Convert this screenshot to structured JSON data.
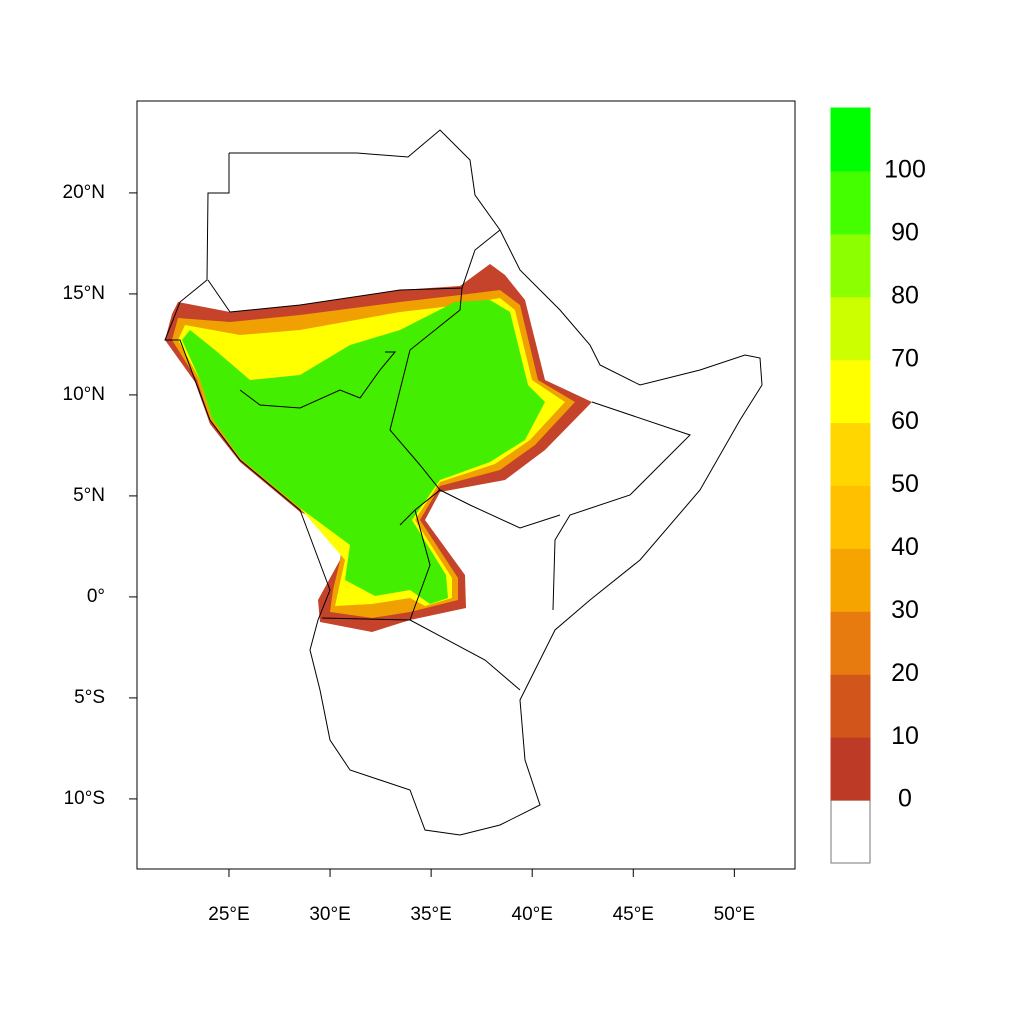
{
  "map": {
    "xlim": [
      20.45,
      53.0
    ],
    "ylim": [
      -13.47,
      24.55
    ],
    "xticks": [
      {
        "value": 25,
        "label": "25°E"
      },
      {
        "value": 30,
        "label": "30°E"
      },
      {
        "value": 35,
        "label": "35°E"
      },
      {
        "value": 40,
        "label": "40°E"
      },
      {
        "value": 45,
        "label": "45°E"
      },
      {
        "value": 50,
        "label": "50°E"
      }
    ],
    "yticks": [
      {
        "value": 20,
        "label": "20°N"
      },
      {
        "value": 15,
        "label": "15°N"
      },
      {
        "value": 10,
        "label": "10°N"
      },
      {
        "value": 5,
        "label": "5°N"
      },
      {
        "value": 0,
        "label": "0°"
      },
      {
        "value": -5,
        "label": "5°S"
      },
      {
        "value": -10,
        "label": "10°S"
      }
    ],
    "colorbar": {
      "levels": [
        0,
        10,
        20,
        30,
        40,
        50,
        60,
        70,
        80,
        90,
        100
      ],
      "colors": [
        "#ffffff",
        "#bc3a26",
        "#d2561c",
        "#e87b10",
        "#f6a400",
        "#ffc000",
        "#ffd600",
        "#ffff00",
        "#ccff00",
        "#8cff00",
        "#44ff00",
        "#00ff00"
      ]
    }
  }
}
